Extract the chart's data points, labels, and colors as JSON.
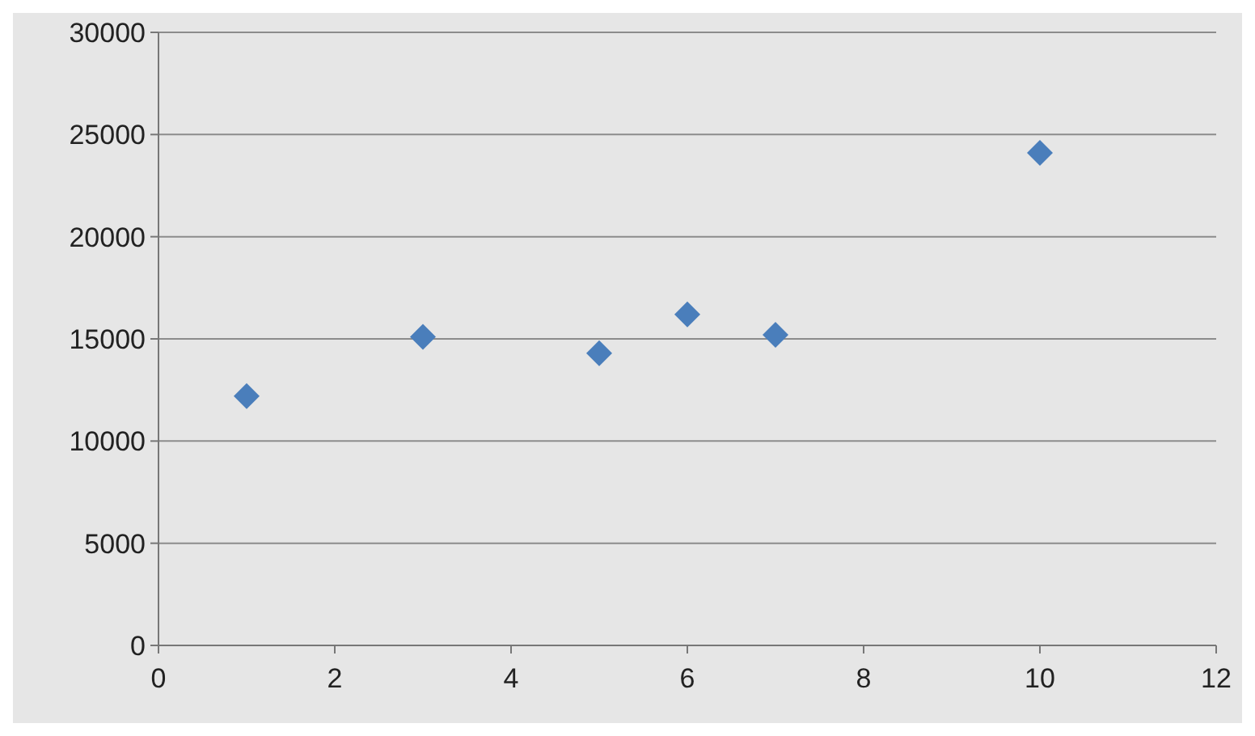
{
  "chart_data": {
    "type": "scatter",
    "x": [
      1,
      3,
      5,
      6,
      7,
      10
    ],
    "values": [
      12200,
      15100,
      14300,
      16200,
      15200,
      24100
    ],
    "color": "#4a7ebb",
    "marker": "diamond",
    "xlim": [
      0,
      12
    ],
    "xticks": [
      0,
      2,
      4,
      6,
      8,
      10,
      12
    ],
    "ylim": [
      0,
      30000
    ],
    "yticks": [
      0,
      5000,
      10000,
      15000,
      20000,
      25000,
      30000
    ],
    "grid": "y"
  }
}
